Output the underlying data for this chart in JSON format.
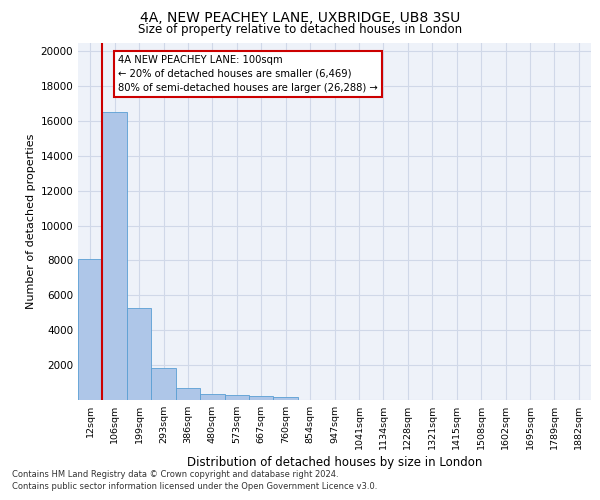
{
  "title_line1": "4A, NEW PEACHEY LANE, UXBRIDGE, UB8 3SU",
  "title_line2": "Size of property relative to detached houses in London",
  "xlabel": "Distribution of detached houses by size in London",
  "ylabel": "Number of detached properties",
  "categories": [
    "12sqm",
    "106sqm",
    "199sqm",
    "293sqm",
    "386sqm",
    "480sqm",
    "573sqm",
    "667sqm",
    "760sqm",
    "854sqm",
    "947sqm",
    "1041sqm",
    "1134sqm",
    "1228sqm",
    "1321sqm",
    "1415sqm",
    "1508sqm",
    "1602sqm",
    "1695sqm",
    "1789sqm",
    "1882sqm"
  ],
  "values": [
    8100,
    16500,
    5300,
    1850,
    680,
    370,
    280,
    210,
    200,
    0,
    0,
    0,
    0,
    0,
    0,
    0,
    0,
    0,
    0,
    0,
    0
  ],
  "bar_color": "#aec6e8",
  "bar_edge_color": "#5a9fd4",
  "grid_color": "#d0d8e8",
  "background_color": "#eef2f9",
  "vline_color": "#cc0000",
  "annotation_text": "4A NEW PEACHEY LANE: 100sqm\n← 20% of detached houses are smaller (6,469)\n80% of semi-detached houses are larger (26,288) →",
  "annotation_box_color": "#cc0000",
  "ylim": [
    0,
    20500
  ],
  "yticks": [
    0,
    2000,
    4000,
    6000,
    8000,
    10000,
    12000,
    14000,
    16000,
    18000,
    20000
  ],
  "footnote_line1": "Contains HM Land Registry data © Crown copyright and database right 2024.",
  "footnote_line2": "Contains public sector information licensed under the Open Government Licence v3.0."
}
